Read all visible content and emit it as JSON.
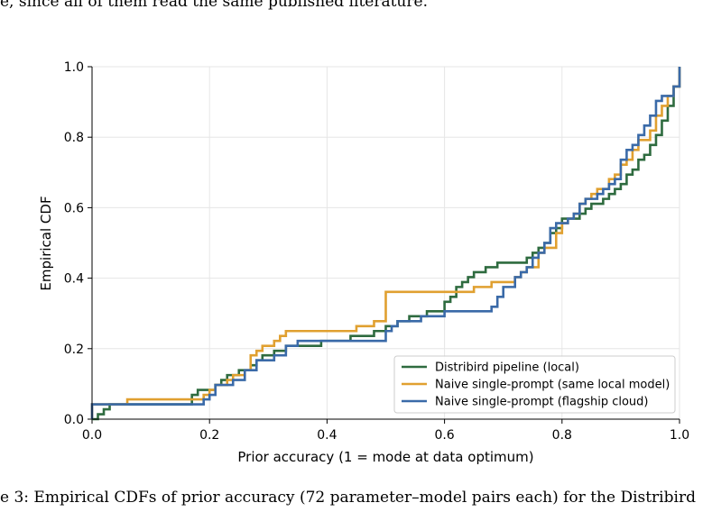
{
  "page": {
    "top_text": "e, since all of them read the same published literature.",
    "caption": "e 3: Empirical CDFs of prior accuracy (72 parameter–model pairs each) for the Distribird"
  },
  "chart_data": {
    "type": "line",
    "xlabel": "Prior accuracy (1 = mode at data optimum)",
    "ylabel": "Empirical CDF",
    "xlim": [
      0.0,
      1.0
    ],
    "ylim": [
      0.0,
      1.0
    ],
    "xticks": [
      "0.0",
      "0.2",
      "0.4",
      "0.6",
      "0.8",
      "1.0"
    ],
    "yticks": [
      "0.0",
      "0.2",
      "0.4",
      "0.6",
      "0.8",
      "1.0"
    ],
    "grid": true,
    "legend_position": "lower-right",
    "series": [
      {
        "name": "Distribird pipeline (local)",
        "color": "#2e6b3f",
        "points": [
          [
            0.0,
            0.0
          ],
          [
            0.01,
            0.014
          ],
          [
            0.02,
            0.028
          ],
          [
            0.03,
            0.042
          ],
          [
            0.17,
            0.056
          ],
          [
            0.17,
            0.069
          ],
          [
            0.18,
            0.083
          ],
          [
            0.2,
            0.083
          ],
          [
            0.21,
            0.097
          ],
          [
            0.22,
            0.111
          ],
          [
            0.23,
            0.125
          ],
          [
            0.25,
            0.139
          ],
          [
            0.27,
            0.153
          ],
          [
            0.28,
            0.167
          ],
          [
            0.29,
            0.181
          ],
          [
            0.31,
            0.194
          ],
          [
            0.33,
            0.208
          ],
          [
            0.39,
            0.222
          ],
          [
            0.44,
            0.236
          ],
          [
            0.48,
            0.25
          ],
          [
            0.5,
            0.264
          ],
          [
            0.52,
            0.278
          ],
          [
            0.54,
            0.292
          ],
          [
            0.57,
            0.306
          ],
          [
            0.6,
            0.319
          ],
          [
            0.6,
            0.333
          ],
          [
            0.61,
            0.347
          ],
          [
            0.62,
            0.361
          ],
          [
            0.62,
            0.375
          ],
          [
            0.63,
            0.389
          ],
          [
            0.64,
            0.403
          ],
          [
            0.65,
            0.417
          ],
          [
            0.67,
            0.431
          ],
          [
            0.69,
            0.444
          ],
          [
            0.74,
            0.458
          ],
          [
            0.75,
            0.472
          ],
          [
            0.76,
            0.486
          ],
          [
            0.77,
            0.5
          ],
          [
            0.78,
            0.514
          ],
          [
            0.78,
            0.528
          ],
          [
            0.79,
            0.542
          ],
          [
            0.8,
            0.556
          ],
          [
            0.8,
            0.569
          ],
          [
            0.83,
            0.583
          ],
          [
            0.84,
            0.597
          ],
          [
            0.85,
            0.611
          ],
          [
            0.87,
            0.625
          ],
          [
            0.88,
            0.639
          ],
          [
            0.89,
            0.653
          ],
          [
            0.9,
            0.667
          ],
          [
            0.91,
            0.681
          ],
          [
            0.91,
            0.694
          ],
          [
            0.92,
            0.708
          ],
          [
            0.93,
            0.722
          ],
          [
            0.93,
            0.736
          ],
          [
            0.94,
            0.75
          ],
          [
            0.95,
            0.764
          ],
          [
            0.95,
            0.778
          ],
          [
            0.96,
            0.792
          ],
          [
            0.96,
            0.806
          ],
          [
            0.97,
            0.819
          ],
          [
            0.97,
            0.833
          ],
          [
            0.97,
            0.847
          ],
          [
            0.98,
            0.861
          ],
          [
            0.98,
            0.875
          ],
          [
            0.98,
            0.889
          ],
          [
            0.99,
            0.903
          ],
          [
            0.99,
            0.917
          ],
          [
            0.99,
            0.931
          ],
          [
            0.99,
            0.944
          ],
          [
            1.0,
            0.958
          ],
          [
            1.0,
            0.972
          ],
          [
            1.0,
            1.0
          ]
        ]
      },
      {
        "name": "Naive single-prompt (same local model)",
        "color": "#e0a030",
        "points": [
          [
            0.0,
            0.0
          ],
          [
            0.0,
            0.042
          ],
          [
            0.06,
            0.056
          ],
          [
            0.19,
            0.069
          ],
          [
            0.2,
            0.083
          ],
          [
            0.21,
            0.097
          ],
          [
            0.23,
            0.111
          ],
          [
            0.24,
            0.125
          ],
          [
            0.26,
            0.139
          ],
          [
            0.27,
            0.153
          ],
          [
            0.27,
            0.181
          ],
          [
            0.28,
            0.194
          ],
          [
            0.29,
            0.208
          ],
          [
            0.31,
            0.222
          ],
          [
            0.32,
            0.236
          ],
          [
            0.33,
            0.25
          ],
          [
            0.45,
            0.264
          ],
          [
            0.48,
            0.278
          ],
          [
            0.5,
            0.292
          ],
          [
            0.5,
            0.361
          ],
          [
            0.64,
            0.361
          ],
          [
            0.65,
            0.375
          ],
          [
            0.68,
            0.389
          ],
          [
            0.72,
            0.403
          ],
          [
            0.73,
            0.417
          ],
          [
            0.74,
            0.431
          ],
          [
            0.76,
            0.458
          ],
          [
            0.76,
            0.472
          ],
          [
            0.77,
            0.486
          ],
          [
            0.79,
            0.528
          ],
          [
            0.8,
            0.556
          ],
          [
            0.81,
            0.569
          ],
          [
            0.82,
            0.583
          ],
          [
            0.83,
            0.597
          ],
          [
            0.83,
            0.611
          ],
          [
            0.84,
            0.625
          ],
          [
            0.85,
            0.639
          ],
          [
            0.86,
            0.653
          ],
          [
            0.88,
            0.667
          ],
          [
            0.88,
            0.681
          ],
          [
            0.89,
            0.694
          ],
          [
            0.9,
            0.708
          ],
          [
            0.9,
            0.722
          ],
          [
            0.91,
            0.736
          ],
          [
            0.92,
            0.75
          ],
          [
            0.92,
            0.764
          ],
          [
            0.93,
            0.778
          ],
          [
            0.93,
            0.792
          ],
          [
            0.95,
            0.806
          ],
          [
            0.95,
            0.819
          ],
          [
            0.96,
            0.833
          ],
          [
            0.96,
            0.847
          ],
          [
            0.96,
            0.861
          ],
          [
            0.97,
            0.875
          ],
          [
            0.97,
            0.889
          ],
          [
            0.98,
            0.903
          ],
          [
            0.98,
            0.917
          ],
          [
            0.99,
            0.931
          ],
          [
            0.99,
            0.944
          ],
          [
            1.0,
            0.958
          ],
          [
            1.0,
            0.972
          ],
          [
            1.0,
            1.0
          ]
        ]
      },
      {
        "name": "Naive single-prompt (flagship cloud)",
        "color": "#3a6aa8",
        "points": [
          [
            0.0,
            0.0
          ],
          [
            0.0,
            0.042
          ],
          [
            0.17,
            0.042
          ],
          [
            0.19,
            0.056
          ],
          [
            0.2,
            0.069
          ],
          [
            0.21,
            0.083
          ],
          [
            0.21,
            0.097
          ],
          [
            0.24,
            0.111
          ],
          [
            0.26,
            0.125
          ],
          [
            0.26,
            0.139
          ],
          [
            0.28,
            0.153
          ],
          [
            0.28,
            0.167
          ],
          [
            0.31,
            0.181
          ],
          [
            0.33,
            0.194
          ],
          [
            0.33,
            0.208
          ],
          [
            0.35,
            0.222
          ],
          [
            0.5,
            0.236
          ],
          [
            0.5,
            0.25
          ],
          [
            0.51,
            0.264
          ],
          [
            0.52,
            0.278
          ],
          [
            0.56,
            0.292
          ],
          [
            0.6,
            0.306
          ],
          [
            0.68,
            0.319
          ],
          [
            0.69,
            0.333
          ],
          [
            0.69,
            0.347
          ],
          [
            0.7,
            0.361
          ],
          [
            0.7,
            0.375
          ],
          [
            0.72,
            0.389
          ],
          [
            0.72,
            0.403
          ],
          [
            0.73,
            0.417
          ],
          [
            0.74,
            0.431
          ],
          [
            0.75,
            0.444
          ],
          [
            0.75,
            0.458
          ],
          [
            0.76,
            0.472
          ],
          [
            0.77,
            0.486
          ],
          [
            0.77,
            0.5
          ],
          [
            0.78,
            0.514
          ],
          [
            0.78,
            0.528
          ],
          [
            0.78,
            0.542
          ],
          [
            0.79,
            0.556
          ],
          [
            0.81,
            0.569
          ],
          [
            0.82,
            0.583
          ],
          [
            0.83,
            0.597
          ],
          [
            0.83,
            0.611
          ],
          [
            0.84,
            0.625
          ],
          [
            0.86,
            0.639
          ],
          [
            0.87,
            0.653
          ],
          [
            0.88,
            0.667
          ],
          [
            0.89,
            0.681
          ],
          [
            0.9,
            0.708
          ],
          [
            0.9,
            0.722
          ],
          [
            0.9,
            0.736
          ],
          [
            0.91,
            0.75
          ],
          [
            0.91,
            0.764
          ],
          [
            0.92,
            0.778
          ],
          [
            0.93,
            0.792
          ],
          [
            0.93,
            0.806
          ],
          [
            0.94,
            0.819
          ],
          [
            0.94,
            0.833
          ],
          [
            0.95,
            0.847
          ],
          [
            0.95,
            0.861
          ],
          [
            0.96,
            0.875
          ],
          [
            0.96,
            0.889
          ],
          [
            0.96,
            0.903
          ],
          [
            0.97,
            0.917
          ],
          [
            0.99,
            0.917
          ],
          [
            0.99,
            0.931
          ],
          [
            0.99,
            0.944
          ],
          [
            1.0,
            0.958
          ],
          [
            1.0,
            1.0
          ]
        ]
      }
    ]
  }
}
